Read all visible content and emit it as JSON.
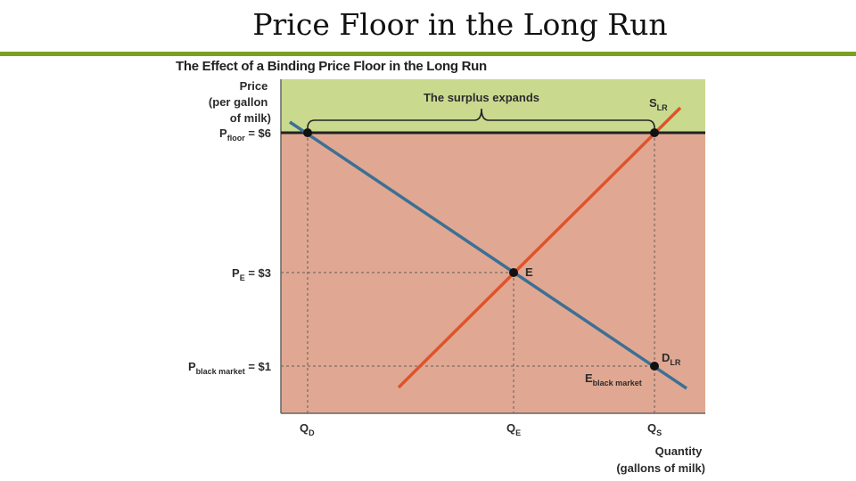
{
  "slide": {
    "title": "Price Floor in the Long Run",
    "accent_color": "#7aa121"
  },
  "figure": {
    "title": "The Effect of a Binding Price Floor in the Long Run",
    "y_axis_label": [
      "Price",
      "(per gallon",
      "of milk)"
    ],
    "x_axis_label": [
      "Quantity",
      "(gallons of milk)"
    ],
    "surplus_label": "The surplus expands",
    "price_labels": {
      "floor": {
        "main": "P",
        "sub": "floor",
        "value": " = $6"
      },
      "equilibrium": {
        "main": "P",
        "sub": "E",
        "value": " = $3"
      },
      "black_market": {
        "main": "P",
        "sub": "black market",
        "value": " = $1"
      }
    },
    "quantity_labels": {
      "demanded": {
        "main": "Q",
        "sub": "D"
      },
      "equilibrium": {
        "main": "Q",
        "sub": "E"
      },
      "supplied": {
        "main": "Q",
        "sub": "S"
      }
    },
    "curve_labels": {
      "supply": {
        "main": "S",
        "sub": "LR"
      },
      "demand": {
        "main": "D",
        "sub": "LR"
      }
    },
    "point_labels": {
      "equilibrium": "E",
      "black_market": {
        "main": "E",
        "sub": "black market"
      }
    },
    "colors": {
      "surplus_region": "#c9da8f",
      "plot_region": "#e0a892",
      "supply_curve": "#e0532a",
      "demand_curve": "#3d6f95",
      "floor_line": "#222222"
    }
  }
}
